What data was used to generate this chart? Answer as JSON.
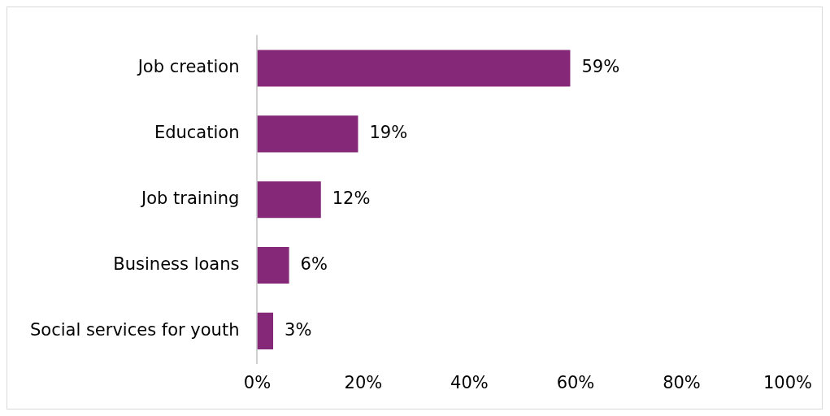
{
  "chart_data": {
    "type": "bar",
    "orientation": "horizontal",
    "categories": [
      "Job creation",
      "Education",
      "Job training",
      "Business loans",
      "Social services for youth"
    ],
    "values": [
      59,
      19,
      12,
      6,
      3
    ],
    "color": "#862878",
    "value_labels": [
      "59%",
      "19%",
      "12%",
      "6%",
      "3%"
    ],
    "xlim": [
      0,
      100
    ],
    "xticks": [
      {
        "value": 0,
        "label": "0%"
      },
      {
        "value": 20,
        "label": "20%"
      },
      {
        "value": 40,
        "label": "40%"
      },
      {
        "value": 60,
        "label": "60%"
      },
      {
        "value": 80,
        "label": "80%"
      },
      {
        "value": 100,
        "label": "100%"
      }
    ],
    "grid": false,
    "legend": false
  }
}
